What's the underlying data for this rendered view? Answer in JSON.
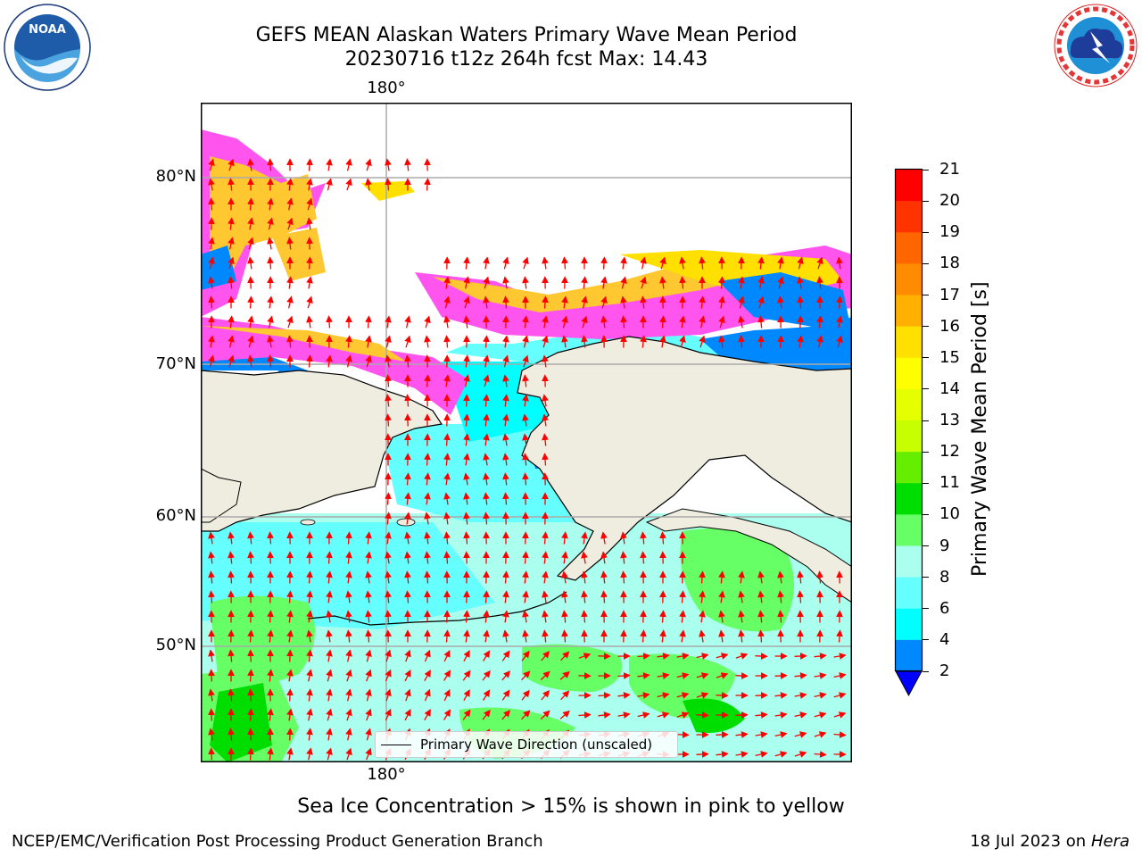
{
  "title": {
    "line1": "GEFS MEAN Alaskan Waters Primary Wave Mean Period",
    "line2": "20230716 t12z 264h fcst   Max: 14.43"
  },
  "logos": {
    "noaa": {
      "text": "NOAA",
      "ring_text": "NATIONAL OCEANIC AND ATMOSPHERIC ADMINISTRATION · U.S. DEPARTMENT OF COMMERCE"
    },
    "nws": {
      "ring_text": "NATIONAL WEATHER SERVICE"
    }
  },
  "map": {
    "lon_labels": [
      "180°",
      "180°"
    ],
    "lat_labels": [
      "80°N",
      "70°N",
      "60°N",
      "50°N"
    ],
    "legend": "Primary Wave Direction (unscaled)"
  },
  "colorbar": {
    "label": "Primary Wave Mean Period [s]",
    "ticks": [
      "21",
      "20",
      "19",
      "18",
      "17",
      "16",
      "15",
      "14",
      "13",
      "12",
      "11",
      "10",
      "9",
      "8",
      "6",
      "4",
      "2"
    ],
    "colors": [
      "#ff0000",
      "#ff3300",
      "#ff6600",
      "#ff8c00",
      "#ffb000",
      "#ffe000",
      "#ffff00",
      "#e6ff00",
      "#c8ff00",
      "#66ee00",
      "#00dd00",
      "#66ff66",
      "#aaffee",
      "#66ffff",
      "#00ffff",
      "#0088ff"
    ],
    "under_color": "#0000ff"
  },
  "note": "Sea Ice Concentration > 15% is shown in pink to yellow",
  "footer": {
    "left": "NCEP/EMC/Verification Post Processing Product Generation Branch",
    "right_date": "18 Jul 2023 on ",
    "right_host": "Hera"
  }
}
